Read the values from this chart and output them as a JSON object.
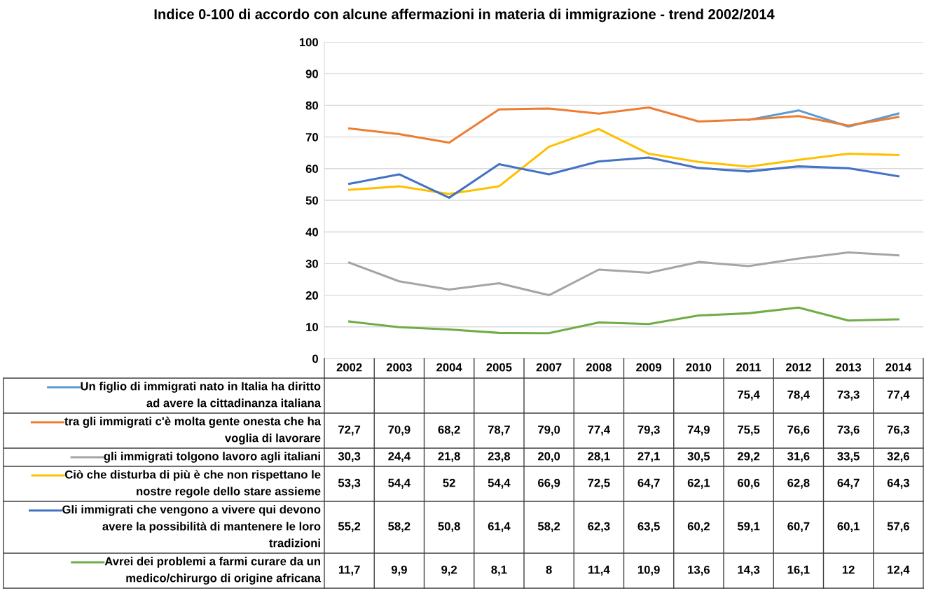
{
  "chart_data": {
    "type": "line",
    "title": "Indice 0-100 di accordo con alcune affermazioni in materia di immigrazione - trend 2002/2014",
    "categories": [
      "2002",
      "2003",
      "2004",
      "2005",
      "2007",
      "2008",
      "2009",
      "2010",
      "2011",
      "2012",
      "2013",
      "2014"
    ],
    "ylim": [
      0,
      100
    ],
    "yticks": [
      0,
      10,
      20,
      30,
      40,
      50,
      60,
      70,
      80,
      90,
      100
    ],
    "grid": "y",
    "legend": "bottom",
    "marker": "none",
    "line_style": "solid",
    "series": [
      {
        "name": "Un figlio di immigrati nato in Italia ha diritto ad avere la cittadinanza italiana",
        "color": "#5b9bd5",
        "values": [
          null,
          null,
          null,
          null,
          null,
          null,
          null,
          null,
          75.4,
          78.4,
          73.3,
          77.4
        ],
        "value_labels": [
          null,
          null,
          null,
          null,
          null,
          null,
          null,
          null,
          "75,4",
          "78,4",
          "73,3",
          "77,4"
        ]
      },
      {
        "name": "tra gli immigrati c'è molta gente onesta che ha voglia di lavorare",
        "color": "#ed7d31",
        "values": [
          72.7,
          70.9,
          68.2,
          78.7,
          79.0,
          77.4,
          79.3,
          74.9,
          75.5,
          76.6,
          73.6,
          76.3
        ],
        "value_labels": [
          "72,7",
          "70,9",
          "68,2",
          "78,7",
          "79,0",
          "77,4",
          "79,3",
          "74,9",
          "75,5",
          "76,6",
          "73,6",
          "76,3"
        ]
      },
      {
        "name": "gli immigrati tolgono lavoro agli italiani",
        "color": "#a5a5a5",
        "values": [
          30.3,
          24.4,
          21.8,
          23.8,
          20.0,
          28.1,
          27.1,
          30.5,
          29.2,
          31.6,
          33.5,
          32.6
        ],
        "value_labels": [
          "30,3",
          "24,4",
          "21,8",
          "23,8",
          "20,0",
          "28,1",
          "27,1",
          "30,5",
          "29,2",
          "31,6",
          "33,5",
          "32,6"
        ]
      },
      {
        "name": "Ciò che disturba di più è che non rispettano le nostre regole dello stare assieme",
        "color": "#ffc000",
        "values": [
          53.3,
          54.4,
          52,
          54.4,
          66.9,
          72.5,
          64.7,
          62.1,
          60.6,
          62.8,
          64.7,
          64.3
        ],
        "value_labels": [
          "53,3",
          "54,4",
          "52",
          "54,4",
          "66,9",
          "72,5",
          "64,7",
          "62,1",
          "60,6",
          "62,8",
          "64,7",
          "64,3"
        ]
      },
      {
        "name": "Gli immigrati che vengono a vivere qui devono avere la possibilità di mantenere le loro tradizioni",
        "color": "#4472c4",
        "values": [
          55.2,
          58.2,
          50.8,
          61.4,
          58.2,
          62.3,
          63.5,
          60.2,
          59.1,
          60.7,
          60.1,
          57.6
        ],
        "value_labels": [
          "55,2",
          "58,2",
          "50,8",
          "61,4",
          "58,2",
          "62,3",
          "63,5",
          "60,2",
          "59,1",
          "60,7",
          "60,1",
          "57,6"
        ]
      },
      {
        "name": "Avrei dei problemi a farmi curare da un medico/chirurgo di origine africana",
        "color": "#70ad47",
        "values": [
          11.7,
          9.9,
          9.2,
          8.1,
          8,
          11.4,
          10.9,
          13.6,
          14.3,
          16.1,
          12,
          12.4
        ],
        "value_labels": [
          "11,7",
          "9,9",
          "9,2",
          "8,1",
          "8",
          "11,4",
          "10,9",
          "13,6",
          "14,3",
          "16,1",
          "12",
          "12,4"
        ]
      }
    ]
  }
}
